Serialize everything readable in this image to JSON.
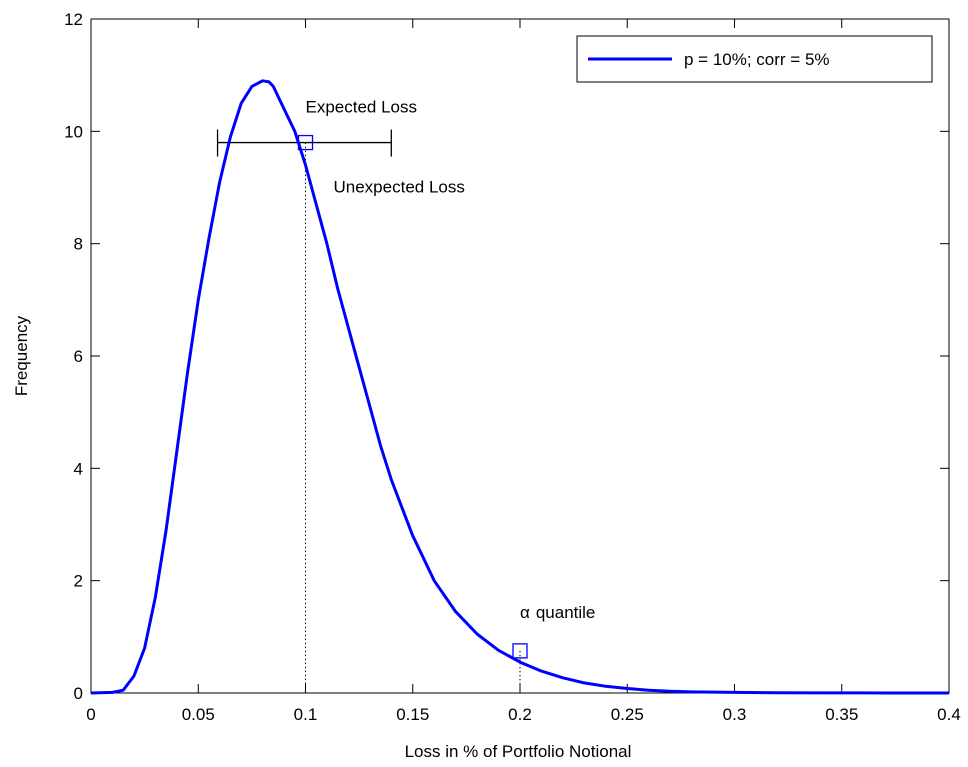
{
  "chart_data": {
    "type": "line",
    "xlabel": "Loss in % of Portfolio Notional",
    "ylabel": "Frequency",
    "xlim": [
      0,
      0.4
    ],
    "ylim": [
      0,
      12
    ],
    "x_ticks": [
      0,
      0.05,
      0.1,
      0.15,
      0.2,
      0.25,
      0.3,
      0.35,
      0.4
    ],
    "x_tick_labels": [
      "0",
      "0.05",
      "0.1",
      "0.15",
      "0.2",
      "0.25",
      "0.3",
      "0.35",
      "0.4"
    ],
    "y_ticks": [
      0,
      2,
      4,
      6,
      8,
      10,
      12
    ],
    "y_tick_labels": [
      "0",
      "2",
      "4",
      "6",
      "8",
      "10",
      "12"
    ],
    "grid": false,
    "legend_position": "top-right",
    "series": [
      {
        "name": "p = 10%; corr = 5%",
        "color": "#0000ff",
        "x": [
          0,
          0.01,
          0.015,
          0.02,
          0.025,
          0.03,
          0.035,
          0.04,
          0.045,
          0.05,
          0.055,
          0.06,
          0.065,
          0.07,
          0.075,
          0.08,
          0.083,
          0.085,
          0.09,
          0.095,
          0.1,
          0.105,
          0.11,
          0.115,
          0.12,
          0.125,
          0.13,
          0.135,
          0.14,
          0.145,
          0.15,
          0.155,
          0.16,
          0.17,
          0.18,
          0.19,
          0.2,
          0.21,
          0.22,
          0.23,
          0.24,
          0.25,
          0.26,
          0.27,
          0.28,
          0.3,
          0.32,
          0.34,
          0.36,
          0.38,
          0.4
        ],
        "y": [
          0,
          0.01,
          0.05,
          0.3,
          0.8,
          1.7,
          2.9,
          4.3,
          5.7,
          7.0,
          8.1,
          9.1,
          9.9,
          10.5,
          10.8,
          10.9,
          10.88,
          10.8,
          10.4,
          10.0,
          9.4,
          8.7,
          8.0,
          7.2,
          6.5,
          5.8,
          5.1,
          4.4,
          3.8,
          3.3,
          2.8,
          2.4,
          2.0,
          1.45,
          1.05,
          0.76,
          0.55,
          0.39,
          0.27,
          0.18,
          0.12,
          0.08,
          0.05,
          0.03,
          0.02,
          0.01,
          0.005,
          0.002,
          0.001,
          0.0005,
          0
        ]
      }
    ],
    "annotations": {
      "expected_loss": {
        "label": "Expected Loss",
        "x": 0.1,
        "y": 9.8
      },
      "unexpected_loss": {
        "label": "Unexpected Loss",
        "x_from": 0.059,
        "x_to": 0.14,
        "y": 9.8
      },
      "alpha_quantile": {
        "label": "quantile",
        "symbol": "α",
        "x": 0.2,
        "y": 0.75
      }
    }
  }
}
